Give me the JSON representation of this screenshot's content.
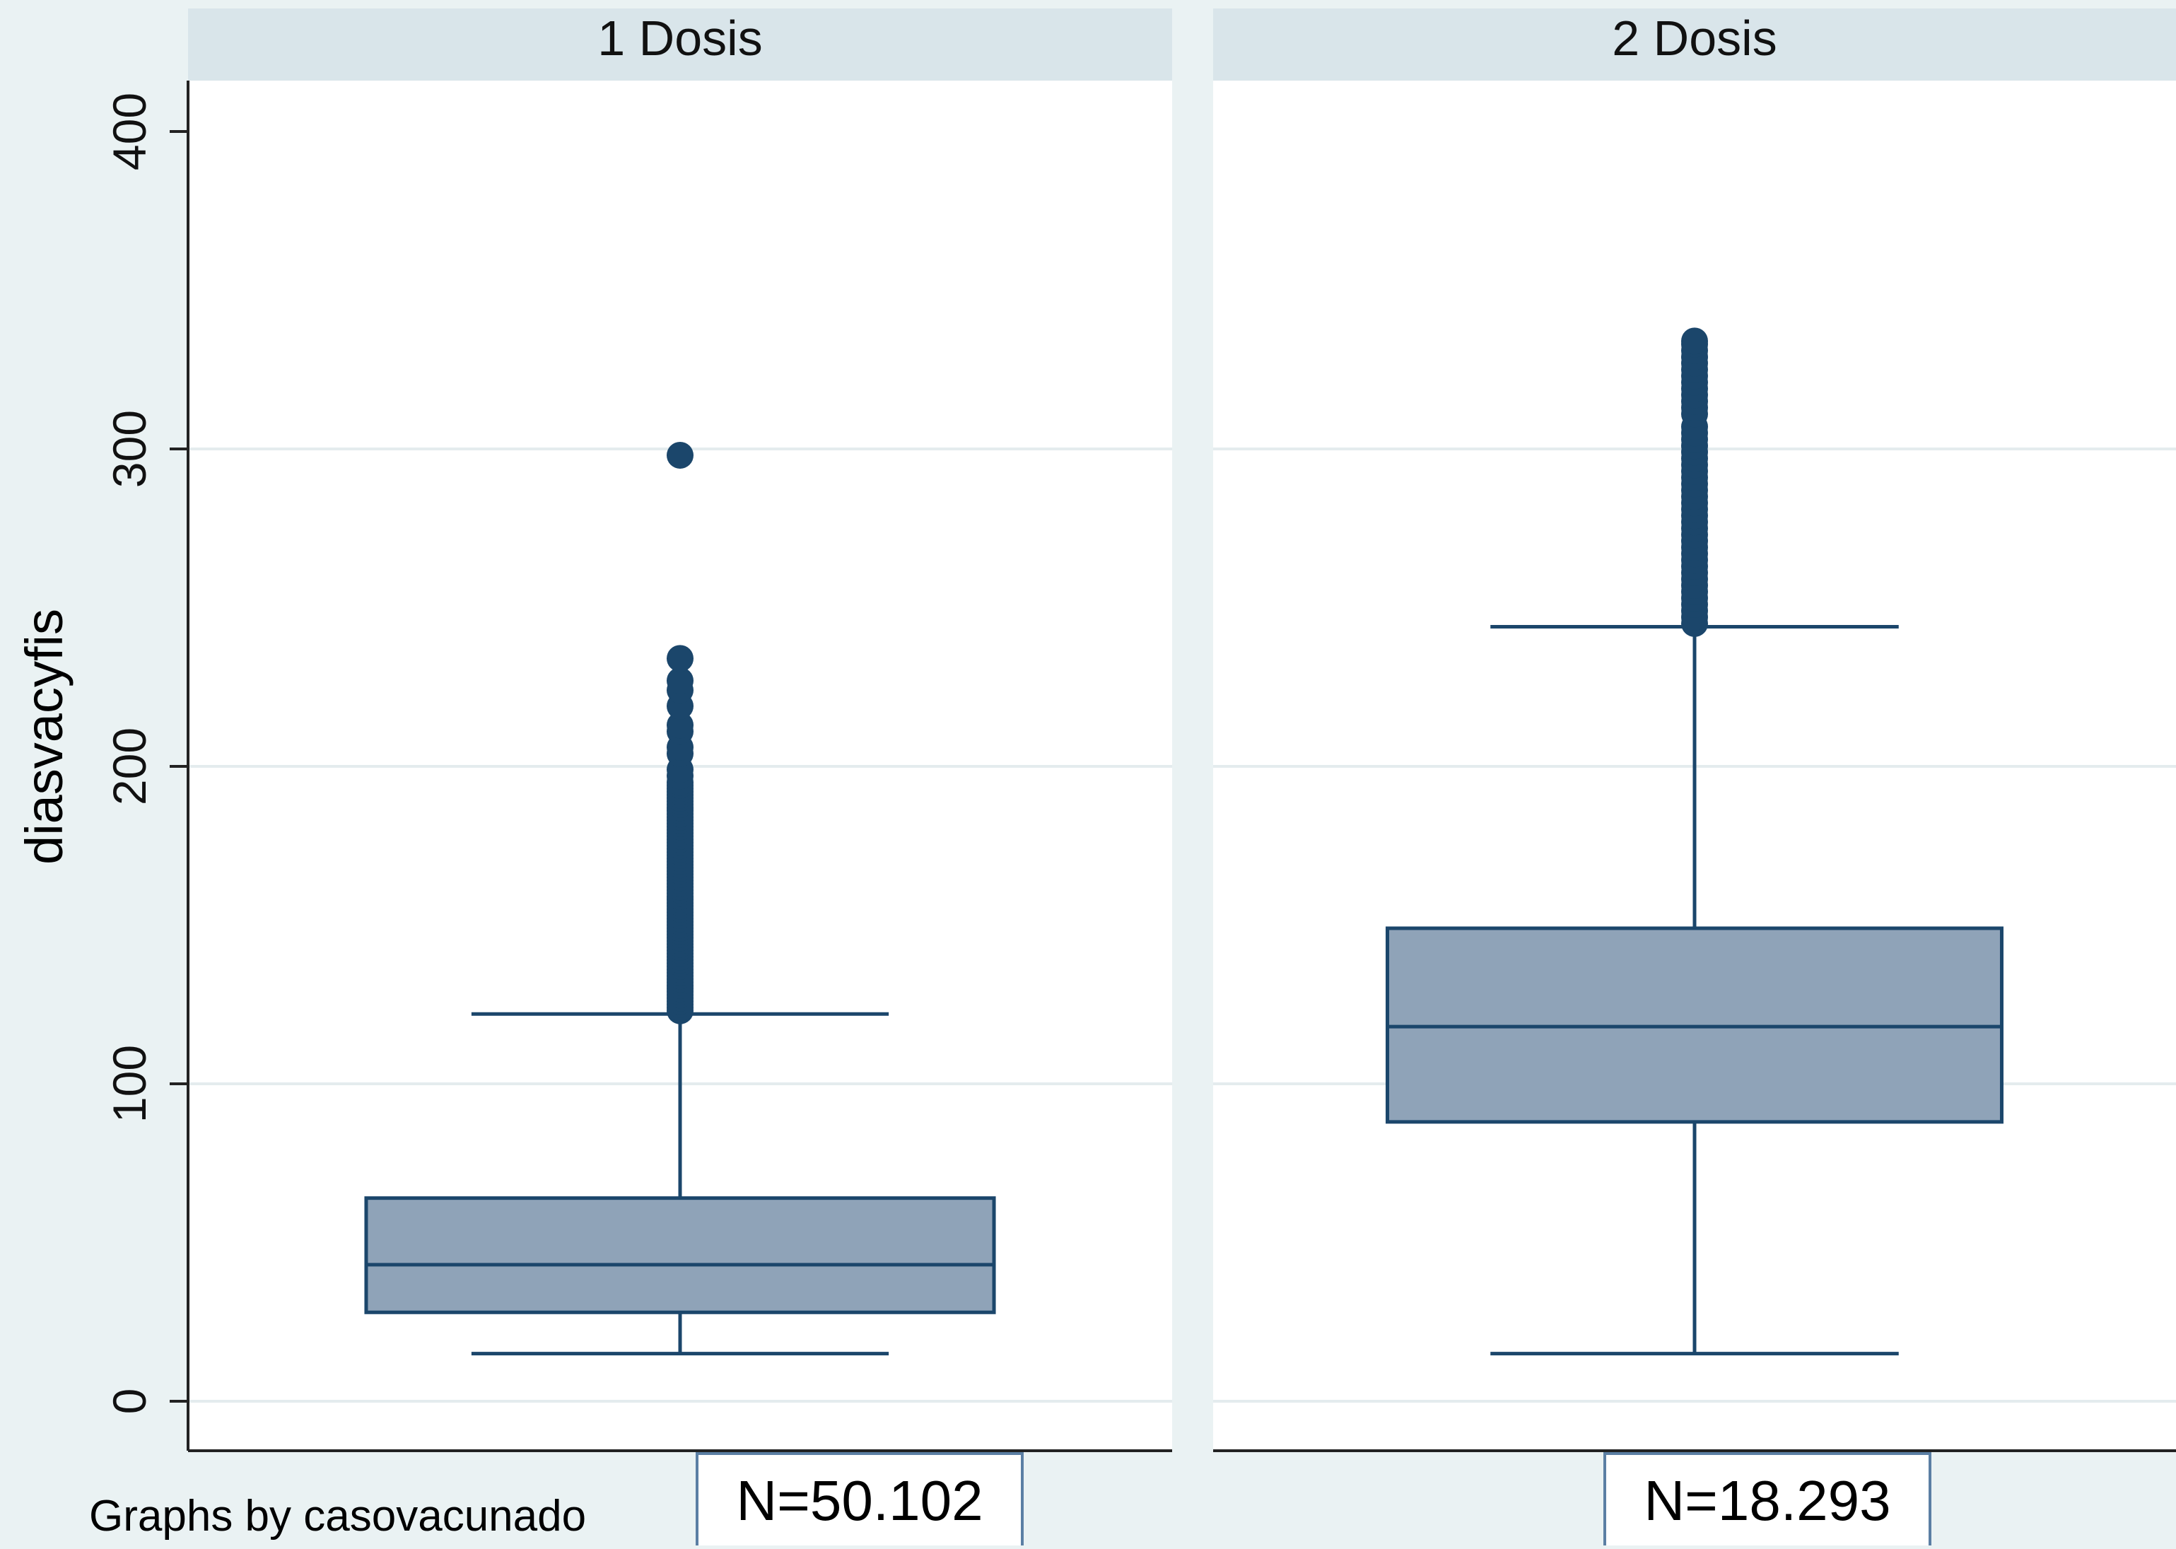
{
  "chart_data": {
    "type": "box",
    "ylabel": "diasvacyfis",
    "ylim": [
      -16,
      400
    ],
    "yticks": [
      0,
      100,
      200,
      300,
      400
    ],
    "grid": true,
    "note": "Graphs by casovacunado",
    "colors": {
      "box_fill": "#8fa3b8",
      "box_stroke": "#1b466b",
      "outlier": "#1b466b",
      "header_bg": "#d9e5ea",
      "plot_bg": "#ffffff",
      "outer_bg": "#eaf2f3",
      "grid": "#e4ecee"
    },
    "panels": [
      {
        "title": "1 Dosis",
        "n_label": "N=50.102",
        "whisker_low": 15,
        "q1": 28,
        "median": 43,
        "q3": 64,
        "whisker_high": 122,
        "outliers": [
          123,
          124,
          125,
          126,
          127,
          128,
          129,
          130,
          131,
          132,
          133,
          134,
          135,
          136,
          137,
          138,
          139,
          140,
          141,
          142,
          143,
          144,
          145,
          146,
          147,
          148,
          149,
          150,
          151,
          152,
          153,
          154,
          155,
          156,
          157,
          158,
          159,
          160,
          161,
          162,
          163,
          164,
          165,
          166,
          167,
          168,
          169,
          170,
          171,
          172,
          173,
          174,
          175,
          176,
          177,
          178,
          179,
          180,
          181,
          182,
          183,
          184,
          185,
          186,
          187,
          188,
          189,
          190,
          191,
          192,
          193,
          194,
          195,
          197,
          199,
          204,
          206,
          211,
          213,
          219,
          224,
          227,
          234,
          298
        ]
      },
      {
        "title": "2 Dosis",
        "n_label": "N=18.293",
        "whisker_low": 15,
        "q1": 88,
        "median": 118,
        "q3": 149,
        "whisker_high": 244,
        "outliers": [
          245,
          247,
          249,
          251,
          253,
          255,
          257,
          259,
          261,
          263,
          265,
          267,
          269,
          271,
          273,
          275,
          277,
          279,
          281,
          283,
          285,
          287,
          289,
          291,
          293,
          295,
          297,
          299,
          301,
          303,
          305,
          307,
          311,
          313,
          315,
          317,
          319,
          321,
          323,
          325,
          327,
          329,
          331,
          333,
          334
        ]
      }
    ]
  }
}
